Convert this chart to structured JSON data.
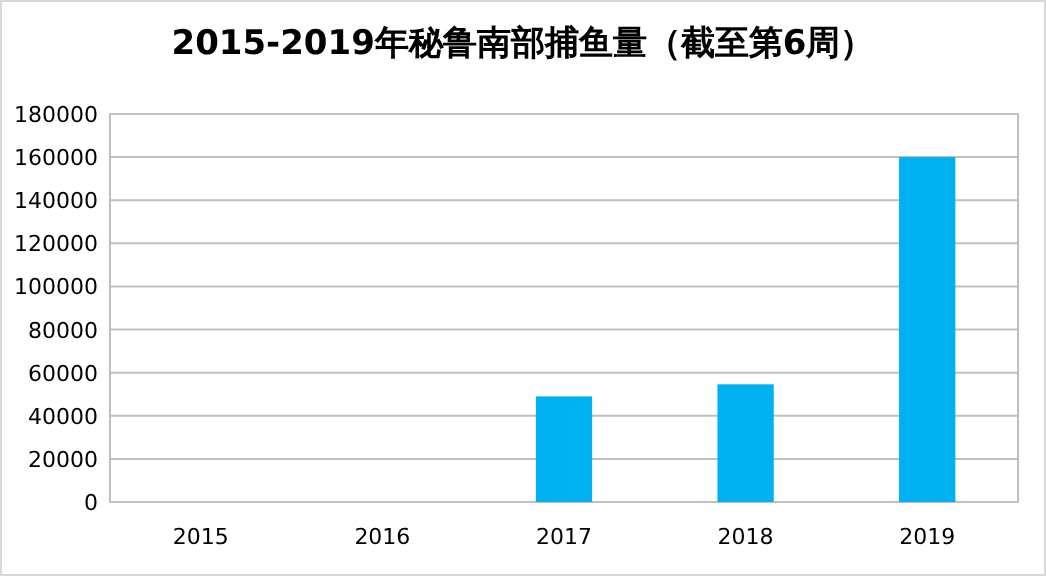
{
  "chart_data": {
    "type": "bar",
    "title": "2015-2019年秘鲁南部捕鱼量（截至第6周）",
    "categories": [
      "2015",
      "2016",
      "2017",
      "2018",
      "2019"
    ],
    "values": [
      0,
      0,
      49000,
      54600,
      160000
    ],
    "color": "#00b0f0",
    "ylim": [
      0,
      180000
    ],
    "yticks": [
      0,
      20000,
      40000,
      60000,
      80000,
      100000,
      120000,
      140000,
      160000,
      180000
    ],
    "grid": "y"
  }
}
